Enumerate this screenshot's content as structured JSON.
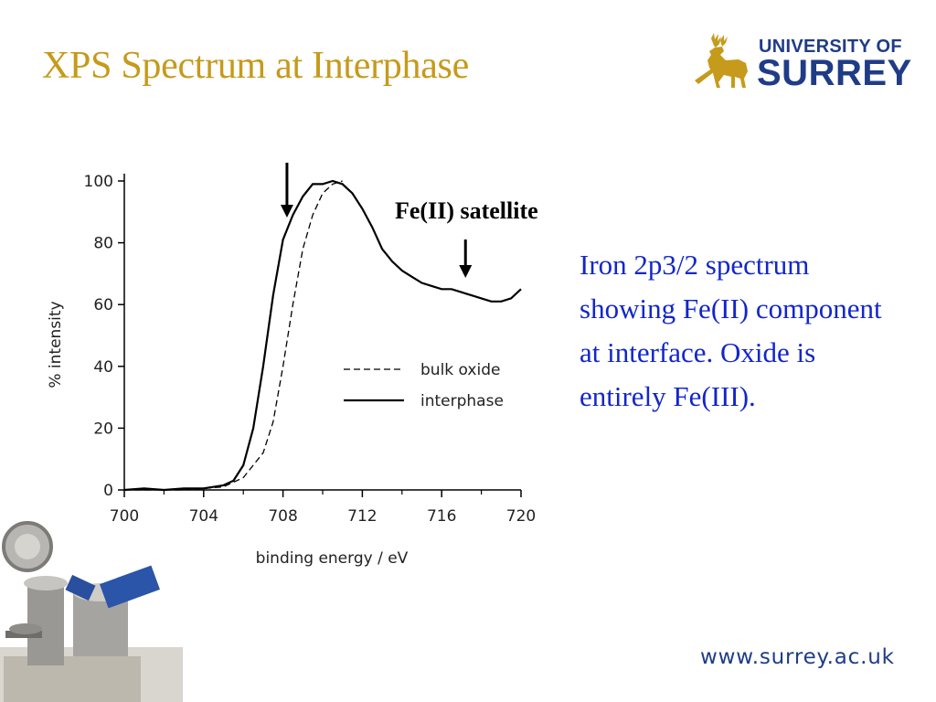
{
  "slide": {
    "title": "XPS Spectrum at Interphase",
    "description": "Iron 2p3/2 spectrum showing Fe(II) component at interface.  Oxide is entirely Fe(III).",
    "url": "www.surrey.ac.uk"
  },
  "logo": {
    "line1": "UNIVERSITY OF",
    "line2": "SURREY"
  },
  "annotation": {
    "label": "Fe(II) satellite"
  },
  "colors": {
    "title": "#c69a1b",
    "description": "#1226c9",
    "logo": "#1f3c87"
  },
  "chart_data": {
    "type": "line",
    "xlabel": "binding energy / eV",
    "ylabel": "% intensity",
    "xlim": [
      700,
      720
    ],
    "ylim": [
      0,
      100
    ],
    "xticks": [
      700,
      704,
      708,
      712,
      716,
      720
    ],
    "yticks": [
      0,
      20,
      40,
      60,
      80,
      100
    ],
    "legend_position": "right-middle",
    "series": [
      {
        "name": "bulk oxide",
        "style": "dashed",
        "x": [
          700,
          703,
          705,
          706,
          707,
          707.5,
          708,
          708.5,
          709,
          709.5,
          710,
          710.5,
          711
        ],
        "y": [
          0,
          0,
          1,
          4,
          12,
          22,
          40,
          60,
          78,
          89,
          96,
          99,
          100
        ]
      },
      {
        "name": "interphase",
        "style": "solid",
        "x": [
          700,
          701,
          702,
          703,
          704,
          705,
          705.5,
          706,
          706.5,
          707,
          707.5,
          708,
          708.5,
          709,
          709.5,
          710,
          710.5,
          711,
          711.5,
          712,
          712.5,
          713,
          713.5,
          714,
          714.5,
          715,
          715.5,
          716,
          716.5,
          717,
          717.5,
          718,
          718.5,
          719,
          719.5,
          720
        ],
        "y": [
          0,
          0.5,
          0,
          0.5,
          0.5,
          1.5,
          3,
          8,
          20,
          40,
          63,
          81,
          89,
          95,
          99,
          99,
          100,
          99,
          96,
          91,
          85,
          78,
          74,
          71,
          69,
          67,
          66,
          65,
          65,
          64,
          63,
          62,
          61,
          61,
          62,
          65
        ]
      }
    ],
    "arrows": [
      708.2,
      717.2
    ]
  }
}
